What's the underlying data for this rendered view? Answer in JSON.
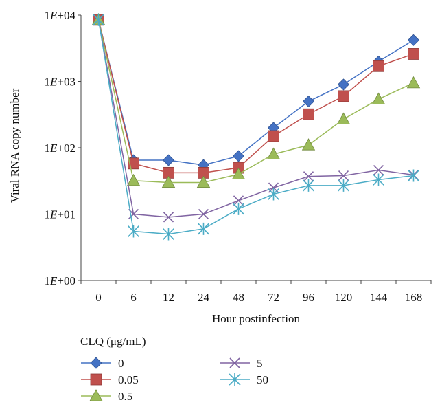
{
  "chart_data": {
    "type": "line",
    "x_label": "Hour postinfection",
    "y_label": "Viral RNA copy number",
    "y_scale": "log",
    "y_range": [
      1,
      10000
    ],
    "y_ticks": [
      "1E+00",
      "1E+01",
      "1E+02",
      "1E+03",
      "1E+04"
    ],
    "categories": [
      "0",
      "6",
      "12",
      "24",
      "48",
      "72",
      "96",
      "120",
      "144",
      "168"
    ],
    "legend_title": "CLQ (μg/mL)",
    "series": [
      {
        "name": "0",
        "color": "#4472c4",
        "marker": "diamond",
        "values": [
          8500,
          65,
          65,
          55,
          75,
          200,
          500,
          900,
          2000,
          4200
        ]
      },
      {
        "name": "0.05",
        "color": "#c0504d",
        "marker": "square",
        "values": [
          8500,
          58,
          42,
          42,
          50,
          150,
          320,
          600,
          1700,
          2600
        ]
      },
      {
        "name": "0.5",
        "color": "#9bbb59",
        "marker": "triangle",
        "values": [
          8500,
          32,
          30,
          30,
          40,
          80,
          110,
          270,
          540,
          950
        ]
      },
      {
        "name": "5",
        "color": "#8064a2",
        "marker": "x",
        "values": [
          8500,
          10,
          9,
          10,
          16,
          25,
          37,
          38,
          46,
          39
        ]
      },
      {
        "name": "50",
        "color": "#4bacc6",
        "marker": "star",
        "values": [
          8500,
          5.5,
          5,
          6,
          12,
          20,
          27,
          27,
          33,
          38
        ]
      }
    ]
  }
}
